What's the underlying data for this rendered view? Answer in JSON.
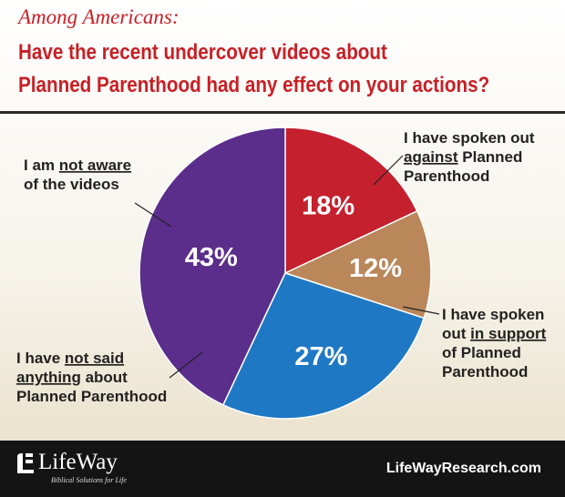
{
  "header": {
    "subtitle": "Among Americans:",
    "title_line1": "Have the recent undercover videos about",
    "title_line2": "Planned Parenthood had any effect on your actions?"
  },
  "chart_data": {
    "type": "pie",
    "title": "Have the recent undercover videos about Planned Parenthood had any effect on your actions?",
    "subtitle": "Among Americans:",
    "unit": "%",
    "slices": [
      {
        "label": "I have spoken out against Planned Parenthood",
        "value": 18,
        "display": "18%",
        "color": "#c4202e",
        "label_lines": [
          [
            "I have spoken out"
          ],
          [
            {
              "t": "against",
              "u": true
            },
            {
              "t": " Planned"
            }
          ],
          [
            "Parenthood"
          ]
        ]
      },
      {
        "label": "I have spoken out in support of Planned Parenthood",
        "value": 12,
        "display": "12%",
        "color": "#b9875a",
        "label_lines": [
          [
            "I have spoken"
          ],
          [
            {
              "t": "out "
            },
            {
              "t": "in support",
              "u": true
            }
          ],
          [
            "of Planned"
          ],
          [
            "Parenthood"
          ]
        ]
      },
      {
        "label": "I have not said anything about Planned Parenthood",
        "value": 27,
        "display": "27%",
        "color": "#1f78c4",
        "label_lines": [
          [
            {
              "t": "I have "
            },
            {
              "t": "not said",
              "u": true
            }
          ],
          [
            {
              "t": "anything",
              "u": true
            },
            {
              "t": " about"
            }
          ],
          [
            "Planned Parenthood"
          ]
        ]
      },
      {
        "label": "I am not aware of the videos",
        "value": 43,
        "display": "43%",
        "color": "#5a2e8a",
        "label_lines": [
          [
            {
              "t": "I am "
            },
            {
              "t": "not aware",
              "u": true
            }
          ],
          [
            "of the videos"
          ]
        ]
      }
    ]
  },
  "footer": {
    "brand": "LifeWay",
    "tagline": "Biblical Solutions for Life",
    "website": "LifeWayResearch.com"
  }
}
